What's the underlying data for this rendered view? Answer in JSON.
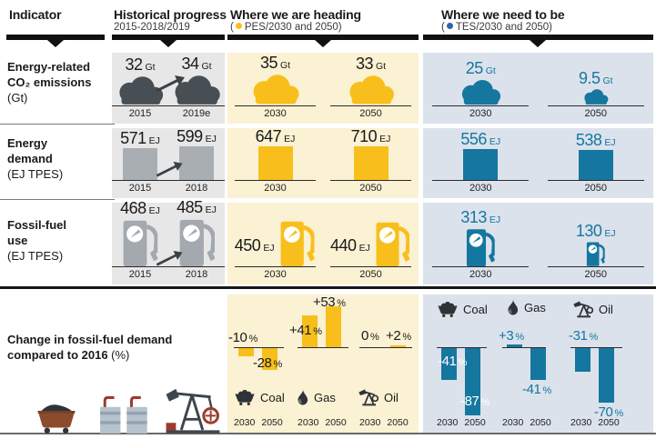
{
  "header": {
    "col_indicator": {
      "title": "Indicator"
    },
    "col_historical": {
      "title": "Historical progress",
      "subtitle": "2015-2018/2019"
    },
    "col_pes": {
      "title": "Where we are heading",
      "subtitle_open": "(",
      "subtitle_label": "PES/2030 and 2050)",
      "dot_color": "#F8BF1C"
    },
    "col_tes": {
      "title": "Where we need to be",
      "subtitle_open": "(",
      "subtitle_label": "TES/2030 and 2050)",
      "dot_color": "#2F66A6"
    }
  },
  "rows": [
    {
      "label1": "Energy-related",
      "label2": "CO₂ emissions",
      "sub": "(Gt)",
      "hist": {
        "a": {
          "val": "32",
          "unit": "Gt",
          "year": "2015"
        },
        "b": {
          "val": "34",
          "unit": "Gt",
          "year": "2019e"
        }
      },
      "pes": {
        "a": {
          "val": "35",
          "unit": "Gt",
          "year": "2030"
        },
        "b": {
          "val": "33",
          "unit": "Gt",
          "year": "2050"
        }
      },
      "tes": {
        "a": {
          "val": "25",
          "unit": "Gt",
          "year": "2030"
        },
        "b": {
          "val": "9.5",
          "unit": "Gt",
          "year": "2050"
        }
      }
    },
    {
      "label1": "Energy",
      "label2": "demand",
      "sub": "(EJ TPES)",
      "hist": {
        "a": {
          "val": "571",
          "unit": "EJ",
          "year": "2015"
        },
        "b": {
          "val": "599",
          "unit": "EJ",
          "year": "2018"
        }
      },
      "pes": {
        "a": {
          "val": "647",
          "unit": "EJ",
          "year": "2030"
        },
        "b": {
          "val": "710",
          "unit": "EJ",
          "year": "2050"
        }
      },
      "tes": {
        "a": {
          "val": "556",
          "unit": "EJ",
          "year": "2030"
        },
        "b": {
          "val": "538",
          "unit": "EJ",
          "year": "2050"
        }
      }
    },
    {
      "label1": "Fossil-fuel",
      "label2": "use",
      "sub": "(EJ TPES)",
      "hist": {
        "a": {
          "val": "468",
          "unit": "EJ",
          "year": "2015"
        },
        "b": {
          "val": "485",
          "unit": "EJ",
          "year": "2018"
        }
      },
      "pes": {
        "a": {
          "val": "450",
          "unit": "EJ",
          "year": "2030"
        },
        "b": {
          "val": "440",
          "unit": "EJ",
          "year": "2050"
        }
      },
      "tes": {
        "a": {
          "val": "313",
          "unit": "EJ",
          "year": "2030"
        },
        "b": {
          "val": "130",
          "unit": "EJ",
          "year": "2050"
        }
      }
    },
    {
      "label1": "Change in fossil-fuel demand",
      "label2": "compared to 2016",
      "sub": "(%)",
      "pes_fuels": [
        {
          "name": "Coal",
          "bars": [
            {
              "v": "-10",
              "s": "%"
            },
            {
              "v": "-28",
              "s": "%"
            }
          ],
          "years": [
            "2030",
            "2050"
          ]
        },
        {
          "name": "Gas",
          "bars": [
            {
              "v": "+41",
              "s": "%"
            },
            {
              "v": "+53",
              "s": "%"
            }
          ],
          "years": [
            "2030",
            "2050"
          ]
        },
        {
          "name": "Oil",
          "bars": [
            {
              "v": "0",
              "s": "%"
            },
            {
              "v": "+2",
              "s": "%"
            }
          ],
          "years": [
            "2030",
            "2050"
          ]
        }
      ],
      "tes_fuels": [
        {
          "name": "Coal",
          "bars": [
            {
              "v": "-41",
              "s": "%"
            },
            {
              "v": "-87",
              "s": "%"
            }
          ],
          "years": [
            "2030",
            "2050"
          ]
        },
        {
          "name": "Gas",
          "bars": [
            {
              "v": "+3",
              "s": "%"
            },
            {
              "v": "-41",
              "s": "%"
            }
          ],
          "years": [
            "2030",
            "2050"
          ]
        },
        {
          "name": "Oil",
          "bars": [
            {
              "v": "-31",
              "s": "%"
            },
            {
              "v": "-70",
              "s": "%"
            }
          ],
          "years": [
            "2030",
            "2050"
          ]
        }
      ]
    }
  ],
  "icons": {
    "coal": "coal-cart-icon",
    "gas": "flame-icon",
    "oil": "pumpjack-icon",
    "decorative": [
      "coal-cart-icon",
      "refinery-icon",
      "oil-pumpjack-icon"
    ],
    "pictograms": [
      "cloud-icon",
      "bar",
      "fuel-pump-icon"
    ]
  },
  "colors": {
    "yellow": "#F8BF1C",
    "yellow_bg": "#FBF1D3",
    "blue": "#15779F",
    "blue_bg": "#DBE2EC",
    "gray_bg": "#E7E7E7",
    "dark_icon": "#474F54",
    "gray_bar": "#A9AEB3",
    "tes_label_white": "#FFFFFF",
    "brown": "#8C4B2D",
    "red": "#9E3B2E"
  },
  "chart_data": [
    {
      "type": "pictogram-bar",
      "title": "Energy-related CO2 emissions",
      "ylabel": "Gt",
      "series": [
        {
          "name": "Historical",
          "points": [
            {
              "x": "2015",
              "value": 32
            },
            {
              "x": "2019e",
              "value": 34
            }
          ]
        },
        {
          "name": "PES",
          "points": [
            {
              "x": "2030",
              "value": 35
            },
            {
              "x": "2050",
              "value": 33
            }
          ]
        },
        {
          "name": "TES",
          "points": [
            {
              "x": "2030",
              "value": 25
            },
            {
              "x": "2050",
              "value": 9.5
            }
          ]
        }
      ]
    },
    {
      "type": "bar",
      "title": "Energy demand",
      "ylabel": "EJ TPES",
      "series": [
        {
          "name": "Historical",
          "points": [
            {
              "x": "2015",
              "value": 571
            },
            {
              "x": "2018",
              "value": 599
            }
          ]
        },
        {
          "name": "PES",
          "points": [
            {
              "x": "2030",
              "value": 647
            },
            {
              "x": "2050",
              "value": 710
            }
          ]
        },
        {
          "name": "TES",
          "points": [
            {
              "x": "2030",
              "value": 556
            },
            {
              "x": "2050",
              "value": 538
            }
          ]
        }
      ]
    },
    {
      "type": "pictogram-bar",
      "title": "Fossil-fuel use",
      "ylabel": "EJ TPES",
      "series": [
        {
          "name": "Historical",
          "points": [
            {
              "x": "2015",
              "value": 468
            },
            {
              "x": "2018",
              "value": 485
            }
          ]
        },
        {
          "name": "PES",
          "points": [
            {
              "x": "2030",
              "value": 450
            },
            {
              "x": "2050",
              "value": 440
            }
          ]
        },
        {
          "name": "TES",
          "points": [
            {
              "x": "2030",
              "value": 313
            },
            {
              "x": "2050",
              "value": 130
            }
          ]
        }
      ]
    },
    {
      "type": "bar",
      "title": "Change in fossil-fuel demand compared to 2016 (%)",
      "ylabel": "%",
      "series": [
        {
          "name": "PES Coal",
          "points": [
            {
              "x": "2030",
              "value": -10
            },
            {
              "x": "2050",
              "value": -28
            }
          ]
        },
        {
          "name": "PES Gas",
          "points": [
            {
              "x": "2030",
              "value": 41
            },
            {
              "x": "2050",
              "value": 53
            }
          ]
        },
        {
          "name": "PES Oil",
          "points": [
            {
              "x": "2030",
              "value": 0
            },
            {
              "x": "2050",
              "value": 2
            }
          ]
        },
        {
          "name": "TES Coal",
          "points": [
            {
              "x": "2030",
              "value": -41
            },
            {
              "x": "2050",
              "value": -87
            }
          ]
        },
        {
          "name": "TES Gas",
          "points": [
            {
              "x": "2030",
              "value": 3
            },
            {
              "x": "2050",
              "value": -41
            }
          ]
        },
        {
          "name": "TES Oil",
          "points": [
            {
              "x": "2030",
              "value": -31
            },
            {
              "x": "2050",
              "value": -70
            }
          ]
        }
      ]
    }
  ]
}
